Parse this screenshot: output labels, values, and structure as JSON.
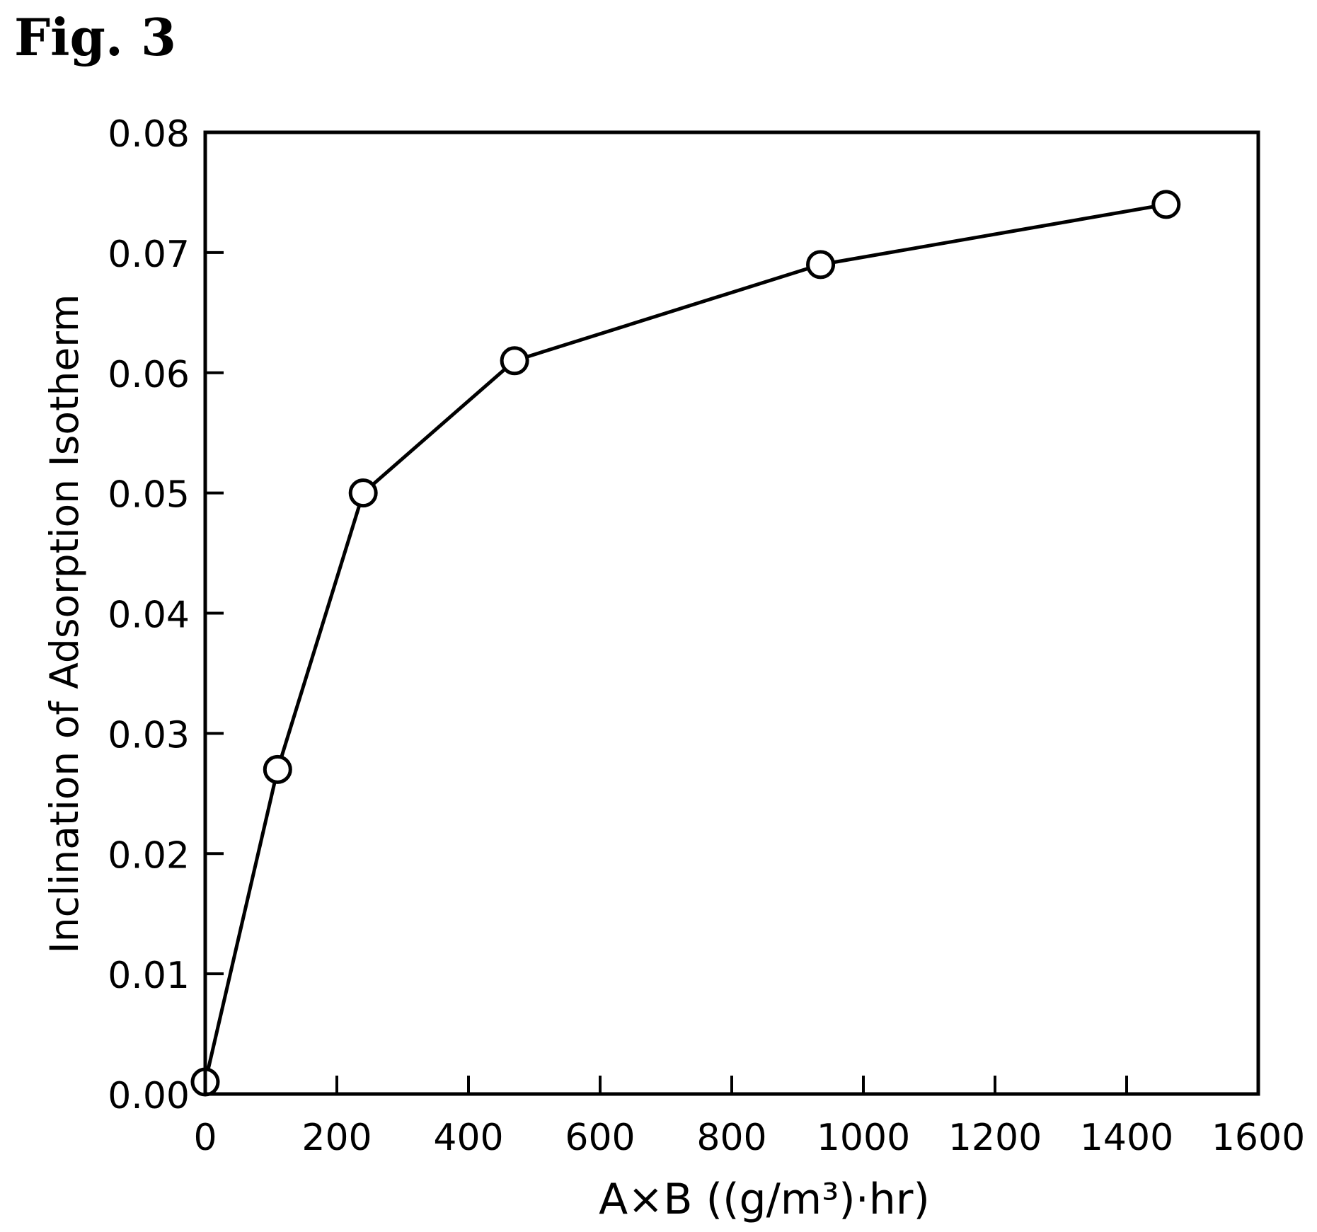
{
  "figure_label": "Fig. 3",
  "chart_data": {
    "type": "line",
    "title": "",
    "xlabel": "A×B ((g/m³)·hr)",
    "ylabel": "Inclination of Adsorption Isotherm",
    "xlim": [
      0,
      1600
    ],
    "ylim": [
      0,
      0.08
    ],
    "x_ticks": [
      0,
      200,
      400,
      600,
      800,
      1000,
      1200,
      1400,
      1600
    ],
    "x_tick_labels": [
      "0",
      "200",
      "400",
      "600",
      "800",
      "1000",
      "1200",
      "1400",
      "1600"
    ],
    "y_ticks": [
      0,
      0.01,
      0.02,
      0.03,
      0.04,
      0.05,
      0.06,
      0.07,
      0.08
    ],
    "y_tick_labels": [
      "0.00",
      "0.01",
      "0.02",
      "0.03",
      "0.04",
      "0.05",
      "0.06",
      "0.07",
      "0.08"
    ],
    "grid": false,
    "marker": "open-circle",
    "line_color": "#000000",
    "series": [
      {
        "x": [
          0,
          110,
          240,
          470,
          935,
          1460
        ],
        "y": [
          0.001,
          0.027,
          0.05,
          0.061,
          0.069,
          0.074
        ]
      }
    ]
  }
}
